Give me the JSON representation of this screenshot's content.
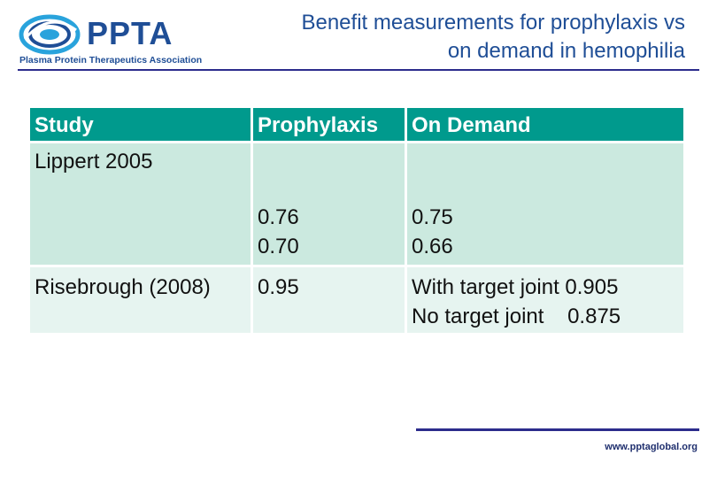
{
  "logo": {
    "wordmark": "PPTA",
    "subtitle": "Plasma Protein Therapeutics Association",
    "brand_color": "#1f4e96",
    "icon": "globe-swirl-icon"
  },
  "slide": {
    "title_line1": "Benefit measurements for prophylaxis vs",
    "title_line2": "on demand in hemophilia"
  },
  "table": {
    "headers": [
      "Study",
      "Prophylaxis",
      "On Demand"
    ],
    "header_color": "#009a8d",
    "rows": [
      {
        "study": "Lippert 2005",
        "prophylaxis": [
          "0.76",
          "0.70"
        ],
        "on_demand": [
          "0.75",
          "0.66"
        ]
      },
      {
        "study": "Risebrough (2008)",
        "prophylaxis": [
          "0.95"
        ],
        "on_demand": [
          "With target joint 0.905",
          "No target joint    0.875"
        ]
      }
    ]
  },
  "footer": {
    "url": "www.pptaglobal.org"
  }
}
